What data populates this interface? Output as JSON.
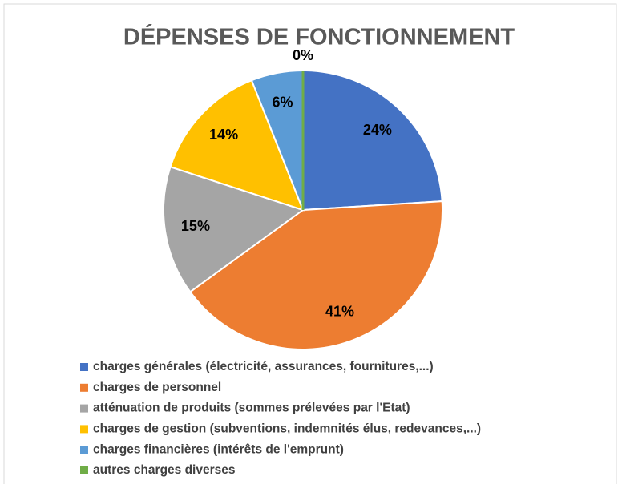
{
  "chart_data": {
    "type": "pie",
    "title": "DÉPENSES DE FONCTIONNEMENT",
    "categories": [
      "charges générales (électricité, assurances, fournitures,...)",
      "charges de personnel",
      "atténuation de produits (sommes prélevées par l'Etat)",
      "charges de gestion (subventions, indemnités élus, redevances,...)",
      "charges financières (intérêts de l'emprunt)",
      "autres charges diverses"
    ],
    "values": [
      24,
      41,
      15,
      14,
      6,
      0
    ],
    "value_labels": [
      "24%",
      "41%",
      "15%",
      "14%",
      "6%",
      "0%"
    ],
    "colors": [
      "#4472c4",
      "#ed7d31",
      "#a5a5a5",
      "#ffc000",
      "#5b9bd5",
      "#70ad47"
    ],
    "legend": "bottom"
  }
}
